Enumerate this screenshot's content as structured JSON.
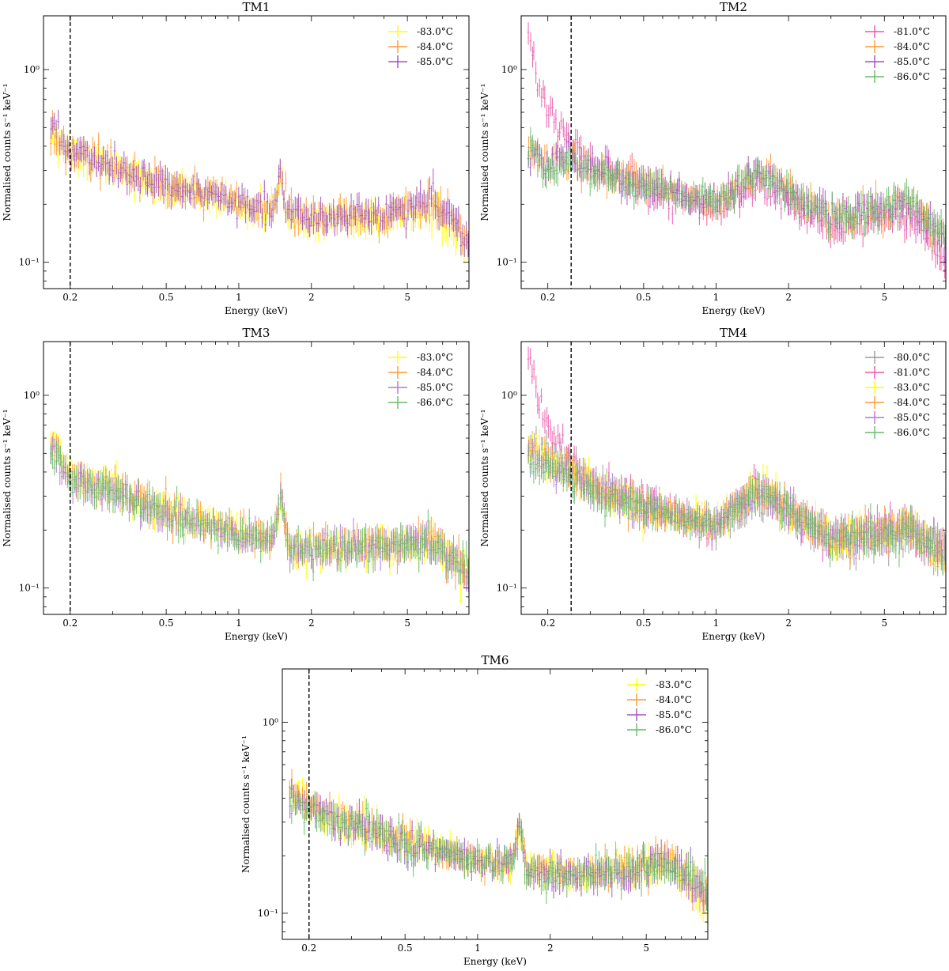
{
  "figure": {
    "xlabel": "Energy (keV)",
    "ylabel": "Normalised counts s⁻¹ keV⁻¹"
  },
  "chart_data": [
    {
      "type": "scatter",
      "title": "TM1",
      "xlabel": "Energy (keV)",
      "ylabel": "Normalised counts s⁻¹ keV⁻¹",
      "xscale": "log",
      "yscale": "log",
      "xlim": [
        0.155,
        9.0
      ],
      "ylim": [
        0.073,
        1.9
      ],
      "xticks": [
        0.2,
        0.5,
        1,
        2,
        5
      ],
      "xtick_labels": [
        "0.2",
        "0.5",
        "1",
        "2",
        "5"
      ],
      "yticks": [
        1,
        0.1
      ],
      "ytick_labels": [
        "10⁰",
        "10⁻¹"
      ],
      "threshold_line_keV": 0.2,
      "legend_position": "top-right",
      "series": [
        {
          "name": "-83.0°C",
          "color": "#ffff00",
          "low_energy_rise": 0,
          "x": [
            0.17,
            0.2,
            0.3,
            0.5,
            1.0,
            1.4,
            1.49,
            1.6,
            3.0,
            6.4,
            9.0
          ],
          "y": [
            0.44,
            0.37,
            0.31,
            0.25,
            0.2,
            0.19,
            0.28,
            0.17,
            0.17,
            0.18,
            0.12
          ]
        },
        {
          "name": "-84.0°C",
          "color": "#ff9a35",
          "low_energy_rise": 0,
          "x": [
            0.17,
            0.2,
            0.3,
            0.5,
            1.0,
            1.4,
            1.49,
            1.6,
            3.0,
            6.4,
            9.0
          ],
          "y": [
            0.46,
            0.38,
            0.31,
            0.25,
            0.21,
            0.19,
            0.3,
            0.18,
            0.17,
            0.2,
            0.13
          ]
        },
        {
          "name": "-85.0°C",
          "color": "#a050c0",
          "low_energy_rise": 0,
          "x": [
            0.17,
            0.2,
            0.3,
            0.5,
            1.0,
            1.4,
            1.49,
            1.6,
            3.0,
            6.4,
            9.0
          ],
          "y": [
            0.48,
            0.38,
            0.31,
            0.25,
            0.21,
            0.19,
            0.31,
            0.18,
            0.17,
            0.21,
            0.13
          ]
        }
      ]
    },
    {
      "type": "scatter",
      "title": "TM2",
      "xlabel": "Energy (keV)",
      "ylabel": "Normalised counts s⁻¹ keV⁻¹",
      "xscale": "log",
      "yscale": "log",
      "xlim": [
        0.155,
        9.0
      ],
      "ylim": [
        0.073,
        1.9
      ],
      "xticks": [
        0.2,
        0.5,
        1,
        2,
        5
      ],
      "xtick_labels": [
        "0.2",
        "0.5",
        "1",
        "2",
        "5"
      ],
      "yticks": [
        1,
        0.1
      ],
      "ytick_labels": [
        "10⁰",
        "10⁻¹"
      ],
      "threshold_line_keV": 0.25,
      "legend_position": "top-right",
      "series": [
        {
          "name": "-81.0°C",
          "color": "#ee55aa",
          "low_energy_rise": 1,
          "x": [
            0.16,
            0.17,
            0.18,
            0.2,
            0.25,
            0.3,
            0.5,
            1.0,
            1.49,
            3.0,
            6.4,
            9.0
          ],
          "y": [
            1.9,
            1.4,
            0.9,
            0.62,
            0.4,
            0.32,
            0.25,
            0.19,
            0.26,
            0.15,
            0.18,
            0.1
          ]
        },
        {
          "name": "-84.0°C",
          "color": "#ff9a35",
          "low_energy_rise": 0,
          "x": [
            0.17,
            0.2,
            0.25,
            0.3,
            0.5,
            1.0,
            1.49,
            3.0,
            6.4,
            9.0
          ],
          "y": [
            0.36,
            0.33,
            0.36,
            0.31,
            0.25,
            0.2,
            0.3,
            0.17,
            0.2,
            0.13
          ]
        },
        {
          "name": "-85.0°C",
          "color": "#a050c0",
          "low_energy_rise": 0,
          "x": [
            0.17,
            0.2,
            0.25,
            0.3,
            0.5,
            1.0,
            1.49,
            3.0,
            6.4,
            9.0
          ],
          "y": [
            0.35,
            0.32,
            0.35,
            0.3,
            0.25,
            0.2,
            0.29,
            0.17,
            0.2,
            0.13
          ]
        },
        {
          "name": "-86.0°C",
          "color": "#66bb66",
          "low_energy_rise": 0,
          "x": [
            0.17,
            0.2,
            0.25,
            0.3,
            0.5,
            1.0,
            1.49,
            3.0,
            6.4,
            9.0
          ],
          "y": [
            0.4,
            0.3,
            0.34,
            0.3,
            0.25,
            0.2,
            0.29,
            0.17,
            0.21,
            0.13
          ]
        }
      ]
    },
    {
      "type": "scatter",
      "title": "TM3",
      "xlabel": "Energy (keV)",
      "ylabel": "Normalised counts s⁻¹ keV⁻¹",
      "xscale": "log",
      "yscale": "log",
      "xlim": [
        0.155,
        9.0
      ],
      "ylim": [
        0.073,
        1.9
      ],
      "xticks": [
        0.2,
        0.5,
        1,
        2,
        5
      ],
      "xtick_labels": [
        "0.2",
        "0.5",
        "1",
        "2",
        "5"
      ],
      "yticks": [
        1,
        0.1
      ],
      "ytick_labels": [
        "10⁰",
        "10⁻¹"
      ],
      "threshold_line_keV": 0.2,
      "legend_position": "top-right",
      "series": [
        {
          "name": "-83.0°C",
          "color": "#ffff00",
          "low_energy_rise": 0,
          "x": [
            0.17,
            0.2,
            0.3,
            0.5,
            1.0,
            1.4,
            1.49,
            1.6,
            3.0,
            6.4,
            9.0
          ],
          "y": [
            0.6,
            0.4,
            0.33,
            0.25,
            0.19,
            0.18,
            0.3,
            0.16,
            0.16,
            0.17,
            0.12
          ]
        },
        {
          "name": "-84.0°C",
          "color": "#ff9a35",
          "low_energy_rise": 0,
          "x": [
            0.17,
            0.2,
            0.3,
            0.5,
            1.0,
            1.4,
            1.49,
            1.6,
            3.0,
            6.4,
            9.0
          ],
          "y": [
            0.55,
            0.38,
            0.32,
            0.25,
            0.19,
            0.18,
            0.31,
            0.16,
            0.16,
            0.18,
            0.12
          ]
        },
        {
          "name": "-85.0°C",
          "color": "#b078d0",
          "low_energy_rise": 0,
          "x": [
            0.17,
            0.2,
            0.3,
            0.5,
            1.0,
            1.4,
            1.49,
            1.6,
            3.0,
            6.4,
            9.0
          ],
          "y": [
            0.52,
            0.37,
            0.31,
            0.24,
            0.19,
            0.18,
            0.3,
            0.16,
            0.16,
            0.17,
            0.12
          ]
        },
        {
          "name": "-86.0°C",
          "color": "#66bb66",
          "low_energy_rise": 0,
          "x": [
            0.17,
            0.2,
            0.3,
            0.5,
            1.0,
            1.4,
            1.49,
            1.6,
            3.0,
            6.4,
            9.0
          ],
          "y": [
            0.5,
            0.37,
            0.31,
            0.24,
            0.19,
            0.18,
            0.3,
            0.16,
            0.16,
            0.17,
            0.13
          ]
        }
      ]
    },
    {
      "type": "scatter",
      "title": "TM4",
      "xlabel": "Energy (keV)",
      "ylabel": "Normalised counts s⁻¹ keV⁻¹",
      "xscale": "log",
      "yscale": "log",
      "xlim": [
        0.155,
        9.0
      ],
      "ylim": [
        0.073,
        1.9
      ],
      "xticks": [
        0.2,
        0.5,
        1,
        2,
        5
      ],
      "xtick_labels": [
        "0.2",
        "0.5",
        "1",
        "2",
        "5"
      ],
      "yticks": [
        1,
        0.1
      ],
      "ytick_labels": [
        "10⁰",
        "10⁻¹"
      ],
      "threshold_line_keV": 0.25,
      "legend_position": "top-right",
      "series": [
        {
          "name": "-80.0°C",
          "color": "#999999",
          "low_energy_rise": 0,
          "x": [
            0.17,
            0.2,
            0.25,
            0.3,
            0.5,
            1.0,
            1.49,
            3.0,
            6.4,
            9.0
          ],
          "y": [
            0.6,
            0.5,
            0.45,
            0.36,
            0.27,
            0.21,
            0.28,
            0.17,
            0.18,
            0.14
          ]
        },
        {
          "name": "-81.0°C",
          "color": "#ee55aa",
          "low_energy_rise": 1,
          "x": [
            0.16,
            0.17,
            0.18,
            0.2,
            0.25,
            0.3,
            0.5,
            1.0,
            1.49,
            3.0,
            6.4,
            9.0
          ],
          "y": [
            1.8,
            1.4,
            1.0,
            0.7,
            0.45,
            0.35,
            0.27,
            0.21,
            0.33,
            0.18,
            0.21,
            0.15
          ]
        },
        {
          "name": "-83.0°C",
          "color": "#ffff00",
          "low_energy_rise": 0,
          "x": [
            0.17,
            0.2,
            0.25,
            0.3,
            0.5,
            1.0,
            1.49,
            3.0,
            6.4,
            9.0
          ],
          "y": [
            0.55,
            0.45,
            0.4,
            0.34,
            0.26,
            0.21,
            0.34,
            0.18,
            0.2,
            0.15
          ]
        },
        {
          "name": "-84.0°C",
          "color": "#ff9a35",
          "low_energy_rise": 0,
          "x": [
            0.17,
            0.2,
            0.25,
            0.3,
            0.5,
            1.0,
            1.49,
            3.0,
            6.4,
            9.0
          ],
          "y": [
            0.5,
            0.43,
            0.39,
            0.33,
            0.26,
            0.21,
            0.33,
            0.18,
            0.2,
            0.15
          ]
        },
        {
          "name": "-85.0°C",
          "color": "#b078d0",
          "low_energy_rise": 0,
          "x": [
            0.17,
            0.2,
            0.25,
            0.3,
            0.5,
            1.0,
            1.49,
            3.0,
            6.4,
            9.0
          ],
          "y": [
            0.48,
            0.42,
            0.38,
            0.33,
            0.26,
            0.21,
            0.33,
            0.18,
            0.2,
            0.15
          ]
        },
        {
          "name": "-86.0°C",
          "color": "#66bb66",
          "low_energy_rise": 0,
          "x": [
            0.17,
            0.2,
            0.25,
            0.3,
            0.5,
            1.0,
            1.49,
            3.0,
            6.4,
            9.0
          ],
          "y": [
            0.45,
            0.4,
            0.38,
            0.32,
            0.26,
            0.21,
            0.33,
            0.18,
            0.2,
            0.15
          ]
        }
      ]
    },
    {
      "type": "scatter",
      "title": "TM6",
      "xlabel": "Energy (keV)",
      "ylabel": "Normalised counts s⁻¹ keV⁻¹",
      "xscale": "log",
      "yscale": "log",
      "xlim": [
        0.155,
        9.0
      ],
      "ylim": [
        0.073,
        1.9
      ],
      "xticks": [
        0.2,
        0.5,
        1,
        2,
        5
      ],
      "xtick_labels": [
        "0.2",
        "0.5",
        "1",
        "2",
        "5"
      ],
      "yticks": [
        1,
        0.1
      ],
      "ytick_labels": [
        "10⁰",
        "10⁻¹"
      ],
      "threshold_line_keV": 0.2,
      "legend_position": "top-right",
      "series": [
        {
          "name": "-83.0°C",
          "color": "#ffff00",
          "low_energy_rise": 0,
          "x": [
            0.17,
            0.2,
            0.3,
            0.5,
            1.0,
            1.4,
            1.49,
            1.6,
            3.0,
            6.4,
            9.0
          ],
          "y": [
            0.45,
            0.36,
            0.3,
            0.24,
            0.19,
            0.18,
            0.3,
            0.17,
            0.16,
            0.18,
            0.11
          ]
        },
        {
          "name": "-84.0°C",
          "color": "#ff9a35",
          "low_energy_rise": 0,
          "x": [
            0.17,
            0.2,
            0.3,
            0.5,
            1.0,
            1.4,
            1.49,
            1.6,
            3.0,
            6.4,
            9.0
          ],
          "y": [
            0.44,
            0.36,
            0.3,
            0.24,
            0.19,
            0.18,
            0.32,
            0.17,
            0.16,
            0.19,
            0.12
          ]
        },
        {
          "name": "-85.0°C",
          "color": "#a050c0",
          "low_energy_rise": 0,
          "x": [
            0.17,
            0.2,
            0.3,
            0.5,
            1.0,
            1.4,
            1.49,
            1.6,
            3.0,
            6.4,
            9.0
          ],
          "y": [
            0.4,
            0.35,
            0.29,
            0.23,
            0.19,
            0.18,
            0.3,
            0.16,
            0.16,
            0.18,
            0.12
          ]
        },
        {
          "name": "-86.0°C",
          "color": "#66bb66",
          "low_energy_rise": 0,
          "x": [
            0.17,
            0.2,
            0.3,
            0.5,
            1.0,
            1.4,
            1.49,
            1.6,
            3.0,
            6.4,
            9.0
          ],
          "y": [
            0.38,
            0.34,
            0.29,
            0.23,
            0.19,
            0.18,
            0.29,
            0.16,
            0.16,
            0.18,
            0.13
          ]
        }
      ]
    }
  ]
}
